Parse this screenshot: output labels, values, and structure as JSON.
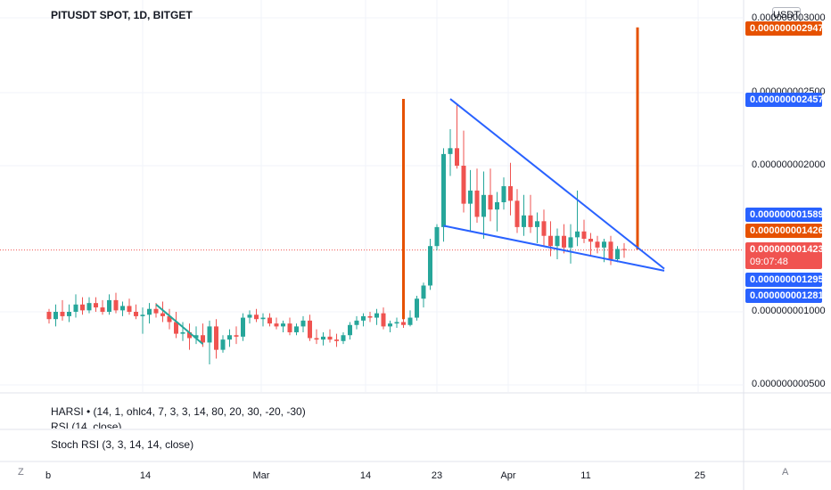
{
  "header": {
    "title": "PITUSDT SPOT, 1D, BITGET",
    "currency_button": "USDT"
  },
  "price_axis": {
    "tick_labels": [
      "0.000000002500",
      "0.000000002000",
      "0.000000001000",
      "0.000000000500"
    ],
    "tick_values": [
      2.5e-09,
      2e-09,
      1e-09,
      5e-10
    ],
    "partial_top_label": "0.000000003000"
  },
  "price_tags": [
    {
      "label": "0.000000002947",
      "value": 2.947e-09,
      "color": "#e65100"
    },
    {
      "label": "0.000000002457",
      "value": 2.457e-09,
      "color": "#2962ff"
    },
    {
      "label": "0.000000001589",
      "value": 1.589e-09,
      "color": "#2962ff"
    },
    {
      "label": "0.000000001426",
      "value": 1.426e-09,
      "color": "#e65100"
    },
    {
      "label": "0.000000001423",
      "value": 1.423e-09,
      "color": "#f05350",
      "sub": "09:07:48"
    },
    {
      "label": "0.000000001295",
      "value": 1.295e-09,
      "color": "#2962ff"
    },
    {
      "label": "0.000000001281",
      "value": 1.281e-09,
      "color": "#2962ff"
    }
  ],
  "indicators": {
    "harsi": "HARSI • (14, 1, ohlc4, 7, 3, 3, 14, 80, 20, 30, -20, -30)",
    "rsi_partial": "RSI (14, close)",
    "stoch": "Stoch RSI (3, 3, 14, 14, close)"
  },
  "time_axis": {
    "labels": [
      "b",
      "14",
      "Mar",
      "14",
      "23",
      "Apr",
      "11",
      "25"
    ],
    "z_button": "Z",
    "a_button": "A"
  },
  "colors": {
    "up": "#26a69a",
    "down": "#ef5350",
    "trendline": "#2962ff",
    "marker": "#e65100",
    "teal_line": "#26a69a"
  },
  "chart_data": {
    "type": "candlestick",
    "title": "PITUSDT SPOT, 1D, BITGET",
    "y_axis": {
      "unit": "USDT",
      "range": [
        4e-10,
        3.2e-09
      ]
    },
    "last_price": 1.423e-09,
    "countdown": "09:07:48",
    "candles": [
      [
        1e-09,
        1.02e-09,
        9.2e-10,
        9.5e-10
      ],
      [
        9.5e-10,
        1.05e-09,
        9e-10,
        1e-09
      ],
      [
        1e-09,
        1.08e-09,
        9.4e-10,
        9.7e-10
      ],
      [
        9.7e-10,
        1.05e-09,
        9.3e-10,
        1e-09
      ],
      [
        1e-09,
        1.12e-09,
        9.6e-10,
        1.05e-09
      ],
      [
        1.05e-09,
        1.1e-09,
        9.8e-10,
        1.01e-09
      ],
      [
        1.01e-09,
        1.1e-09,
        9.9e-10,
        1.06e-09
      ],
      [
        1.06e-09,
        1.1e-09,
        1e-09,
        1.03e-09
      ],
      [
        1.03e-09,
        1.08e-09,
        9.8e-10,
        1e-09
      ],
      [
        1e-09,
        1.12e-09,
        9.8e-10,
        1.08e-09
      ],
      [
        1.08e-09,
        1.13e-09,
        9.9e-10,
        1.01e-09
      ],
      [
        1.01e-09,
        1.07e-09,
        9.7e-10,
        1.04e-09
      ],
      [
        1.04e-09,
        1.09e-09,
        9.8e-10,
        1e-09
      ],
      [
        1e-09,
        1.05e-09,
        9.5e-10,
        9.7e-10
      ],
      [
        9.7e-10,
        1.03e-09,
        8.5e-10,
        9.8e-10
      ],
      [
        9.8e-10,
        1.06e-09,
        9.2e-10,
        1.02e-09
      ],
      [
        1.02e-09,
        1.06e-09,
        9.6e-10,
        9.9e-10
      ],
      [
        9.9e-10,
        1.07e-09,
        9.3e-10,
        9.7e-10
      ],
      [
        9.7e-10,
        1.02e-09,
        8.8e-10,
        9.3e-10
      ],
      [
        9.3e-10,
        1e-09,
        8.2e-10,
        8.5e-10
      ],
      [
        8.5e-10,
        9.3e-10,
        8e-10,
        8.6e-10
      ],
      [
        8.6e-10,
        9.2e-10,
        7.4e-10,
        8.2e-10
      ],
      [
        8.2e-10,
        9e-10,
        7.8e-10,
        8.4e-10
      ],
      [
        8.4e-10,
        9.2e-10,
        7.6e-10,
        7.9e-10
      ],
      [
        7.9e-10,
        9.4e-10,
        6.4e-10,
        9e-10
      ],
      [
        9e-10,
        9.5e-10,
        6.8e-10,
        7.4e-10
      ],
      [
        7.4e-10,
        8.4e-10,
        7.2e-10,
        8.1e-10
      ],
      [
        8.1e-10,
        8.8e-10,
        7.6e-10,
        8.4e-10
      ],
      [
        8.4e-10,
        9e-10,
        7.8e-10,
        8.3e-10
      ],
      [
        8.3e-10,
        9.9e-10,
        8e-10,
        9.6e-10
      ],
      [
        9.6e-10,
        1.01e-09,
        9.2e-10,
        9.8e-10
      ],
      [
        9.8e-10,
        1.02e-09,
        9.3e-10,
        9.5e-10
      ],
      [
        9.5e-10,
        9.9e-10,
        9e-10,
        9.6e-10
      ],
      [
        9.6e-10,
        9.9e-10,
        9e-10,
        9.2e-10
      ],
      [
        9.2e-10,
        9.6e-10,
        8.8e-10,
        9e-10
      ],
      [
        9e-10,
        9.4e-10,
        8.6e-10,
        9.2e-10
      ],
      [
        9.2e-10,
        9.6e-10,
        8.4e-10,
        8.6e-10
      ],
      [
        8.6e-10,
        9.2e-10,
        8.4e-10,
        9e-10
      ],
      [
        9e-10,
        9.7e-10,
        8.6e-10,
        9.4e-10
      ],
      [
        9.4e-10,
        9.8e-10,
        8e-10,
        8.2e-10
      ],
      [
        8.2e-10,
        8.8e-10,
        7.8e-10,
        8.1e-10
      ],
      [
        8.1e-10,
        8.6e-10,
        7.7e-10,
        8.3e-10
      ],
      [
        8.3e-10,
        8.8e-10,
        7.9e-10,
        8.1e-10
      ],
      [
        8.1e-10,
        8.5e-10,
        7.6e-10,
        8e-10
      ],
      [
        8e-10,
        8.6e-10,
        7.8e-10,
        8.4e-10
      ],
      [
        8.4e-10,
        9.3e-10,
        8.1e-10,
        9.1e-10
      ],
      [
        9.1e-10,
        9.7e-10,
        8.8e-10,
        9.4e-10
      ],
      [
        9.4e-10,
        9.9e-10,
        9e-10,
        9.7e-10
      ],
      [
        9.7e-10,
        1e-09,
        9.3e-10,
        9.6e-10
      ],
      [
        9.6e-10,
        1.02e-09,
        9.1e-10,
        9.9e-10
      ],
      [
        9.9e-10,
        1.03e-09,
        8.8e-10,
        9e-10
      ],
      [
        9e-10,
        9.4e-10,
        8.6e-10,
        9.2e-10
      ],
      [
        9.2e-10,
        9.6e-10,
        8.9e-10,
        9.3e-10
      ],
      [
        9.3e-10,
        9.6e-10,
        8.9e-10,
        9.1e-10
      ],
      [
        9.1e-10,
        1.01e-09,
        9e-10,
        9.6e-10
      ],
      [
        9.6e-10,
        1.11e-09,
        9.4e-10,
        1.09e-09
      ],
      [
        1.09e-09,
        1.2e-09,
        1.03e-09,
        1.18e-09
      ],
      [
        1.18e-09,
        1.5e-09,
        1.15e-09,
        1.45e-09
      ],
      [
        1.45e-09,
        1.6e-09,
        1.42e-09,
        1.58e-09
      ],
      [
        1.58e-09,
        2.12e-09,
        1.48e-09,
        2.08e-09
      ],
      [
        2.08e-09,
        2.25e-09,
        1.93e-09,
        2.12e-09
      ],
      [
        2.12e-09,
        2.42e-09,
        1.98e-09,
        2e-09
      ],
      [
        2e-09,
        2.24e-09,
        1.68e-09,
        1.74e-09
      ],
      [
        1.74e-09,
        1.97e-09,
        1.55e-09,
        1.83e-09
      ],
      [
        1.83e-09,
        1.98e-09,
        1.61e-09,
        1.65e-09
      ],
      [
        1.65e-09,
        1.96e-09,
        1.5e-09,
        1.8e-09
      ],
      [
        1.8e-09,
        1.98e-09,
        1.62e-09,
        1.7e-09
      ],
      [
        1.7e-09,
        1.82e-09,
        1.55e-09,
        1.75e-09
      ],
      [
        1.75e-09,
        1.92e-09,
        1.7e-09,
        1.86e-09
      ],
      [
        1.86e-09,
        2.02e-09,
        1.66e-09,
        1.76e-09
      ],
      [
        1.76e-09,
        1.84e-09,
        1.54e-09,
        1.58e-09
      ],
      [
        1.58e-09,
        1.8e-09,
        1.52e-09,
        1.66e-09
      ],
      [
        1.66e-09,
        1.8e-09,
        1.54e-09,
        1.58e-09
      ],
      [
        1.58e-09,
        1.68e-09,
        1.47e-09,
        1.62e-09
      ],
      [
        1.62e-09,
        1.7e-09,
        1.45e-09,
        1.52e-09
      ],
      [
        1.52e-09,
        1.62e-09,
        1.38e-09,
        1.45e-09
      ],
      [
        1.45e-09,
        1.57e-09,
        1.36e-09,
        1.52e-09
      ],
      [
        1.52e-09,
        1.6e-09,
        1.4e-09,
        1.44e-09
      ],
      [
        1.44e-09,
        1.6e-09,
        1.33e-09,
        1.51e-09
      ],
      [
        1.51e-09,
        1.83e-09,
        1.45e-09,
        1.55e-09
      ],
      [
        1.55e-09,
        1.63e-09,
        1.47e-09,
        1.5e-09
      ],
      [
        1.5e-09,
        1.54e-09,
        1.38e-09,
        1.48e-09
      ],
      [
        1.48e-09,
        1.52e-09,
        1.4e-09,
        1.44e-09
      ],
      [
        1.44e-09,
        1.5e-09,
        1.34e-09,
        1.48e-09
      ],
      [
        1.48e-09,
        1.52e-09,
        1.32e-09,
        1.36e-09
      ],
      [
        1.36e-09,
        1.45e-09,
        1.34e-09,
        1.43e-09
      ],
      [
        1.43e-09,
        1.47e-09,
        1.37e-09,
        1.423e-09
      ]
    ],
    "markers": [
      {
        "type": "vertical-line",
        "color": "#e65100",
        "from": 9.5e-10,
        "to": 2.457e-09,
        "candle_index": 53
      },
      {
        "type": "vertical-line",
        "color": "#e65100",
        "from": 1.426e-09,
        "to": 2.947e-09,
        "candle_index": 88
      }
    ],
    "annotation_lines": [
      {
        "color": "#26a69a",
        "from": [
          16,
          1.05e-09
        ],
        "to": [
          23,
          7.8e-10
        ]
      },
      {
        "color": "#2962ff",
        "from": [
          60,
          2.457e-09
        ],
        "to": [
          92,
          1.295e-09
        ]
      },
      {
        "color": "#2962ff",
        "from": [
          59,
          1.589e-09
        ],
        "to": [
          92,
          1.281e-09
        ]
      }
    ]
  }
}
